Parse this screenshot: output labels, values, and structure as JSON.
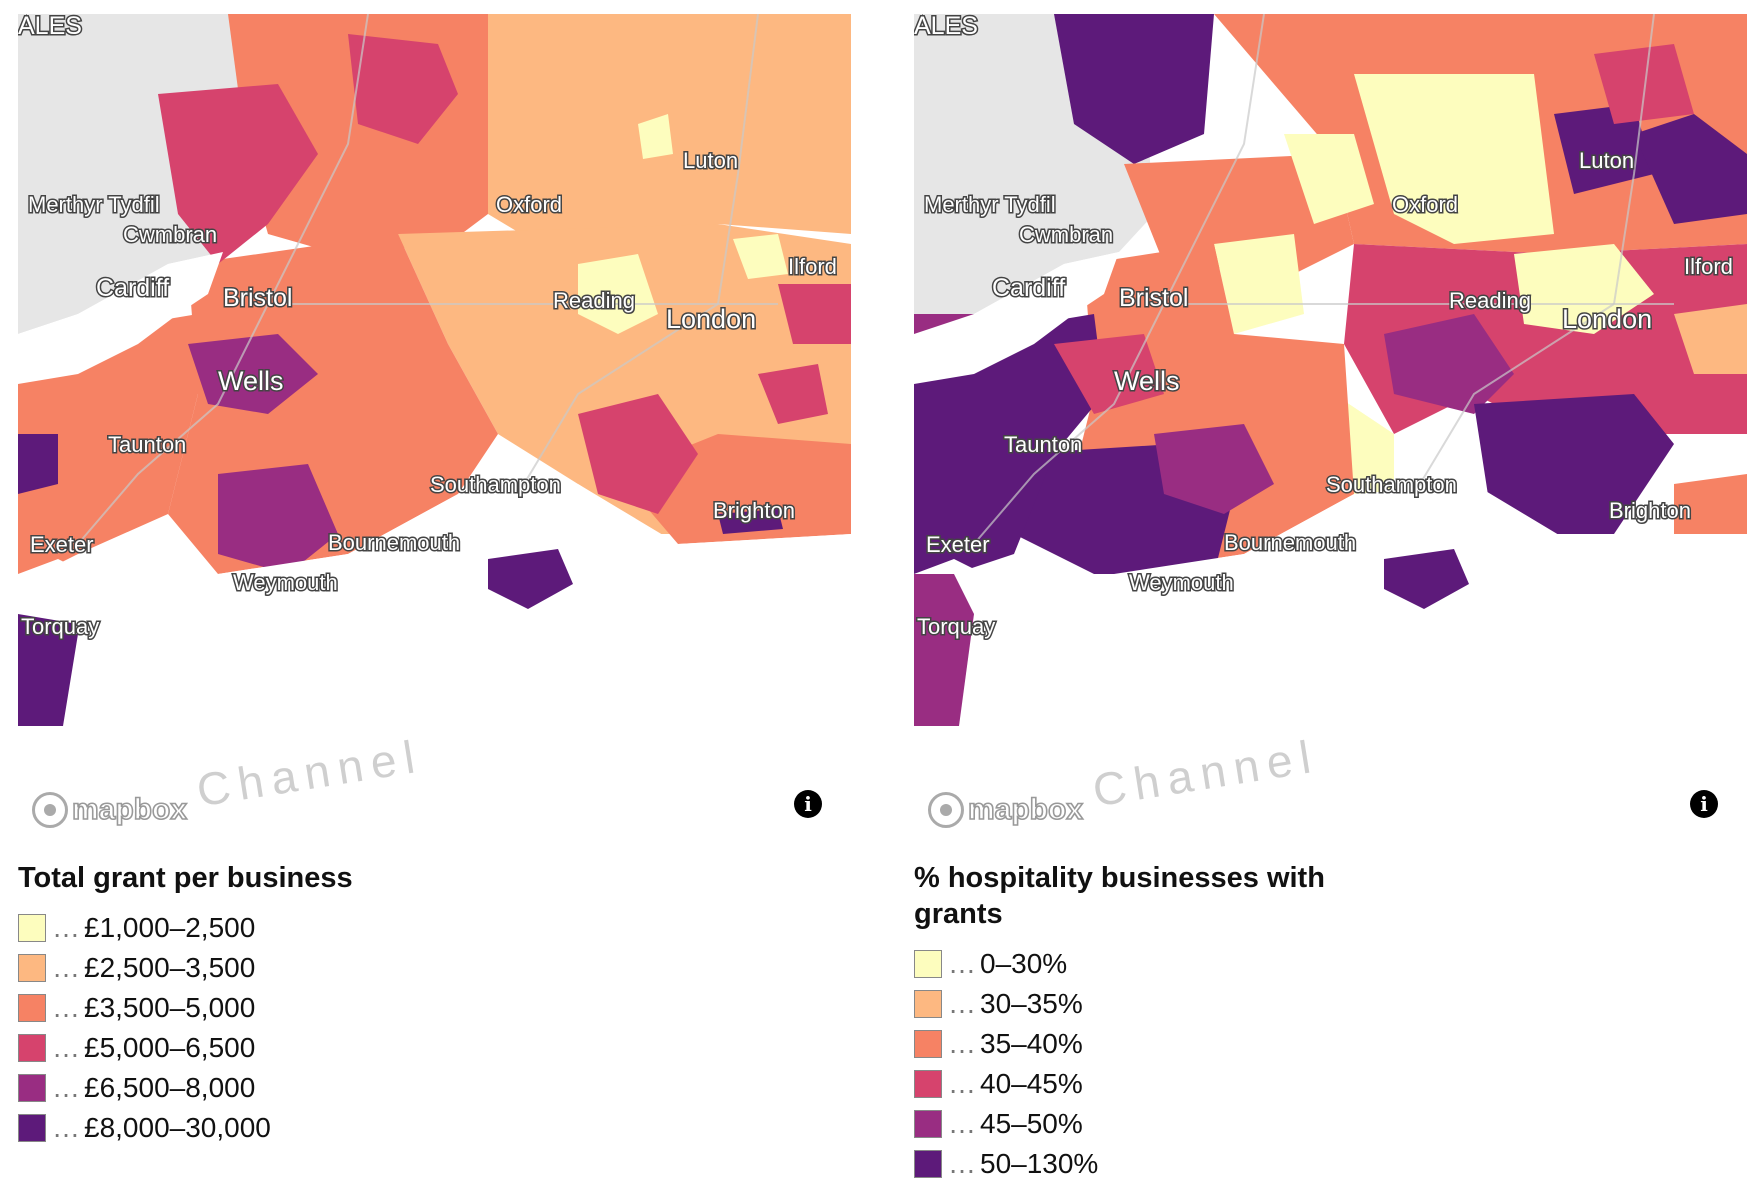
{
  "colors": {
    "land": "#e6e6e6",
    "road": "#c9c9c9",
    "c1": "#fdfdbe",
    "c2": "#fdb881",
    "c3": "#f68264",
    "c4": "#d6436d",
    "c5": "#992d82",
    "c6": "#5d1a7a"
  },
  "top_labels": {
    "wales": "ALES"
  },
  "places": [
    "Merthyr Tydfil",
    "Cwmbran",
    "Cardiff",
    "Bristol",
    "Wells",
    "Taunton",
    "Exeter",
    "Torquay",
    "Weymouth",
    "Bournemouth",
    "Southampton",
    "Brighton",
    "Oxford",
    "Luton",
    "Reading",
    "London",
    "Ilford"
  ],
  "maps": [
    {
      "legend_title": "Total grant per business",
      "legend": [
        {
          "label": "£1,000–2,500",
          "color": "#fdfdbe"
        },
        {
          "label": "£2,500–3,500",
          "color": "#fdb881"
        },
        {
          "label": "£3,500–5,000",
          "color": "#f68264"
        },
        {
          "label": "£5,000–6,500",
          "color": "#d6436d"
        },
        {
          "label": "£6,500–8,000",
          "color": "#992d82"
        },
        {
          "label": "£8,000–30,000",
          "color": "#5d1a7a"
        }
      ]
    },
    {
      "legend_title": "% hospitality businesses with grants",
      "legend": [
        {
          "label": "0–30%",
          "color": "#fdfdbe"
        },
        {
          "label": "30–35%",
          "color": "#fdb881"
        },
        {
          "label": "35–40%",
          "color": "#f68264"
        },
        {
          "label": "40–45%",
          "color": "#d6436d"
        },
        {
          "label": "45–50%",
          "color": "#992d82"
        },
        {
          "label": "50–130%",
          "color": "#5d1a7a"
        }
      ]
    }
  ],
  "attribution": {
    "logo": "mapbox",
    "watermark": "Channel",
    "info": "i"
  }
}
